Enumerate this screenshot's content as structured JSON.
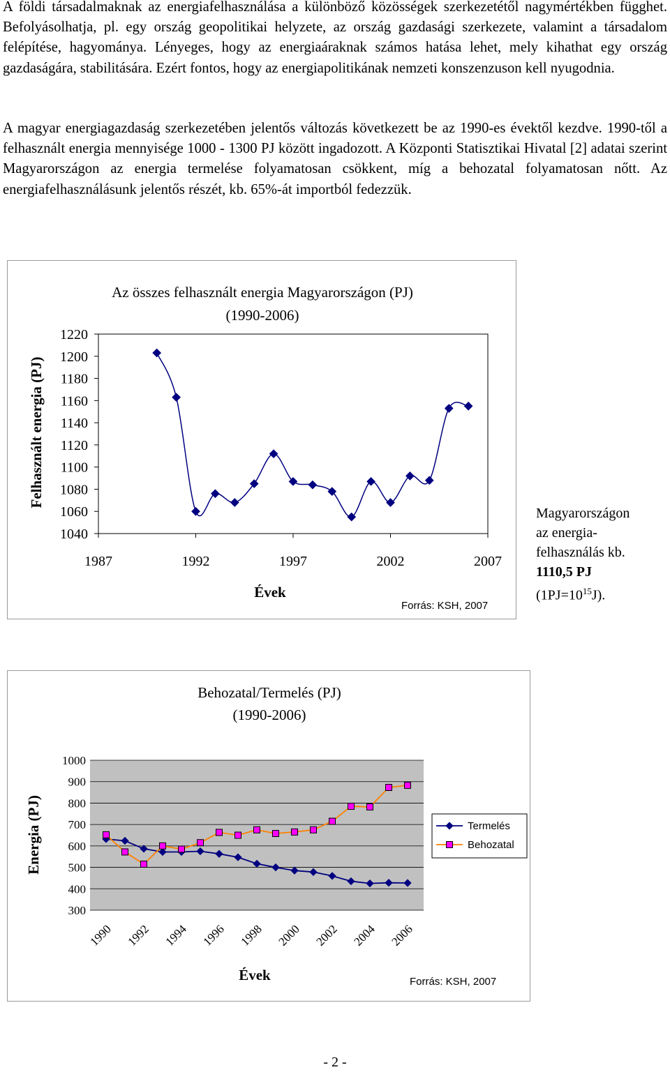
{
  "paragraphs": {
    "p1": "A földi társadalmaknak az energiafelhasználása a különböző közösségek szerkezetétől nagymértékben függhet. Befolyásolhatja, pl. egy ország geopolitikai helyzete, az ország gazdasági szerkezete, valamint a társadalom felépítése, hagyománya. Lényeges, hogy az energiaáraknak számos hatása lehet, mely kihathat egy ország gazdaságára, stabilitására. Ezért fontos, hogy az energiapolitikának nemzeti konszenzuson kell nyugodnia.",
    "p2": "A magyar energiagazdaság szerkezetében jelentős változás következett be az 1990-es évektől kezdve. 1990-től a felhasznált energia mennyisége 1000 - 1300 PJ között ingadozott. A Központi Statisztikai Hivatal [2] adatai szerint Magyarországon az energia termelése folyamatosan csökkent, míg a behozatal folyamatosan nőtt. Az energiafelhasználásunk jelentős részét, kb. 65%-át importból fedezzük."
  },
  "side_note": {
    "line1": "Magyarországon",
    "line2": "az energia-",
    "line3": "felhasználás kb.",
    "line4": "1110,5 PJ",
    "line5_pre": "(1PJ=10",
    "line5_sup": "15",
    "line5_post": "J)."
  },
  "page_number": "- 2 -",
  "colors": {
    "termeles": "#000080",
    "behozatal_line": "#ff8000",
    "behozatal_marker": "#ff00ff"
  },
  "chart_data": [
    {
      "type": "line",
      "title": "Az összes felhasznált energia Magyarországon (PJ)",
      "subtitle": "(1990-2006)",
      "xlabel": "Évek",
      "ylabel": "Felhasznált energia (PJ)",
      "source": "Forrás: KSH, 2007",
      "xlim": [
        1987,
        2007
      ],
      "ylim": [
        1040,
        1220
      ],
      "xticks": [
        "1987",
        "1992",
        "1997",
        "2002",
        "2007"
      ],
      "yticks": [
        "1220",
        "1200",
        "1180",
        "1160",
        "1140",
        "1120",
        "1100",
        "1080",
        "1060",
        "1040"
      ],
      "series": [
        {
          "name": "Felhasznált energia",
          "x": [
            1990,
            1991,
            1992,
            1993,
            1994,
            1995,
            1996,
            1997,
            1998,
            1999,
            2000,
            2001,
            2002,
            2003,
            2004,
            2005,
            2006
          ],
          "values": [
            1203,
            1163,
            1060,
            1076,
            1068,
            1085,
            1112,
            1087,
            1084,
            1078,
            1055,
            1087,
            1068,
            1092,
            1088,
            1153,
            1155
          ]
        }
      ]
    },
    {
      "type": "line",
      "title": "Behozatal/Termelés (PJ)",
      "subtitle": "(1990-2006)",
      "xlabel": "Évek",
      "ylabel": "Energia (PJ)",
      "source": "Forrás: KSH, 2007",
      "xlim": [
        1990,
        2006
      ],
      "ylim": [
        300,
        1000
      ],
      "xticks": [
        "1990",
        "1992",
        "1994",
        "1996",
        "1998",
        "2000",
        "2002",
        "2004",
        "2006"
      ],
      "yticks": [
        "1000",
        "900",
        "800",
        "700",
        "600",
        "500",
        "400",
        "300"
      ],
      "grid": true,
      "legend": "right",
      "series": [
        {
          "name": "Termelés",
          "x": [
            1990,
            1991,
            1992,
            1993,
            1994,
            1995,
            1996,
            1997,
            1998,
            1999,
            2000,
            2001,
            2002,
            2003,
            2004,
            2005,
            2006
          ],
          "values": [
            632,
            624,
            587,
            572,
            572,
            575,
            563,
            547,
            517,
            500,
            485,
            478,
            460,
            435,
            425,
            428,
            427
          ]
        },
        {
          "name": "Behozatal",
          "x": [
            1990,
            1991,
            1992,
            1993,
            1994,
            1995,
            1996,
            1997,
            1998,
            1999,
            2000,
            2001,
            2002,
            2003,
            2004,
            2005,
            2006
          ],
          "values": [
            652,
            572,
            515,
            600,
            585,
            615,
            663,
            650,
            675,
            658,
            665,
            675,
            715,
            785,
            782,
            873,
            883
          ]
        }
      ]
    }
  ]
}
